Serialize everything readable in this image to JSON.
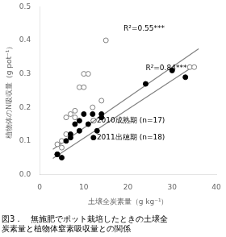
{
  "chart_data": {
    "type": "scatter",
    "caption": "図3．　無施肥でポット栽培したときの土壌全\n炭素量と植物体窒素吸収量との関係",
    "x_label": "土壌全炭素量（g kg⁻¹）",
    "y_label": "植物体のN吸収量（g pot⁻¹）",
    "series": [
      {
        "type": "line",
        "color": "#808080",
        "x": [
          3,
          36
        ],
        "values": [
          0.075,
          0.375
        ]
      },
      {
        "type": "line",
        "color": "#808080",
        "x": [
          3,
          34
        ],
        "values": [
          0.048,
          0.315
        ]
      },
      {
        "type": "scatter",
        "marker": "open circle",
        "color": "#808080",
        "x": [
          4,
          5,
          5,
          6,
          6,
          7,
          8,
          8,
          9,
          10,
          10,
          11,
          12,
          14,
          15,
          34,
          35
        ],
        "values": [
          0.09,
          0.1,
          0.08,
          0.17,
          0.12,
          0.18,
          0.19,
          0.17,
          0.26,
          0.3,
          0.26,
          0.3,
          0.2,
          0.22,
          0.4,
          0.32,
          0.32
        ]
      },
      {
        "type": "scatter",
        "marker": "circle",
        "color": "#000000",
        "x": [
          4,
          4,
          5,
          6,
          7,
          7,
          8,
          9,
          9,
          10,
          11,
          12,
          13,
          14,
          14,
          24,
          30,
          33
        ],
        "values": [
          0.06,
          0.06,
          0.05,
          0.1,
          0.12,
          0.11,
          0.15,
          0.16,
          0.13,
          0.18,
          0.15,
          0.18,
          0.13,
          0.18,
          0.17,
          0.27,
          0.31,
          0.29
        ]
      }
    ],
    "annotations": [
      {
        "text": "R²=0.55***",
        "x": 19,
        "y": 0.43
      },
      {
        "text": "R²=0.84***",
        "x": 24,
        "y": 0.31
      },
      {
        "text": "○2010成熟期 (n=17)",
        "x": 11.5,
        "y": 0.155
      },
      {
        "text": "●2011出穂期 (n=18)",
        "x": 11.5,
        "y": 0.105
      }
    ],
    "xlim": [
      0,
      40
    ],
    "xticks": [
      0,
      10,
      20,
      30,
      40
    ],
    "ylim": [
      0,
      0.5
    ],
    "yticks": [
      {
        "value": 0,
        "label": "0.0"
      },
      0.1,
      0.2,
      0.3,
      0.4,
      0.5
    ],
    "grid": false
  }
}
